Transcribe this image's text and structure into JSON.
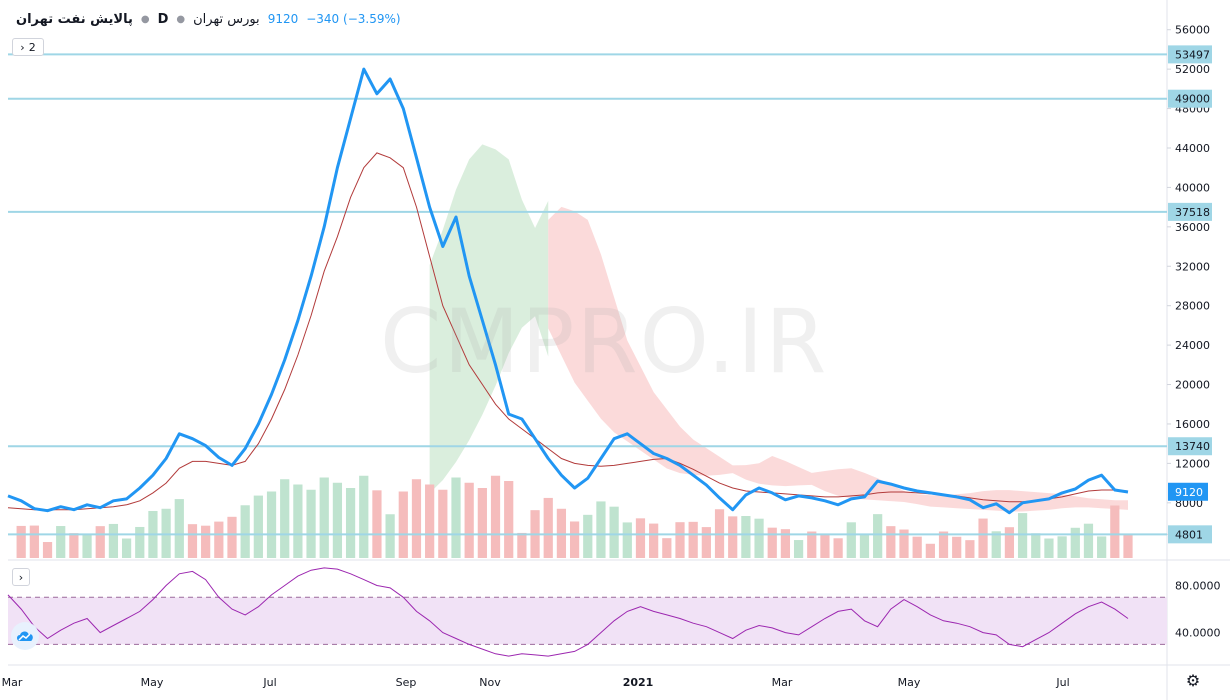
{
  "header": {
    "symbol": "پالایش نفت تهران",
    "timeframe": "D",
    "exchange": "بورس تهران",
    "price": "9120",
    "change": "−340 (−3.59%)"
  },
  "controls": {
    "collapse_count": "2"
  },
  "watermark": "CMPRO.IR",
  "colors": {
    "price_line": "#2196f3",
    "ma_line": "#b23b3b",
    "hline": "#9fd6e6",
    "cloud_bull": "#d6ecd9",
    "cloud_bear": "#fbd6d6",
    "vol_up": "#bfe3cf",
    "vol_down": "#f5bcbc",
    "rsi_line": "#9c27b0",
    "rsi_band": "#f1e2f6"
  },
  "chart_data": [
    {
      "type": "line",
      "x_labels": [
        "Mar",
        "May",
        "Jul",
        "Sep",
        "Nov",
        "2021",
        "Mar",
        "May",
        "Jul"
      ],
      "y_ticks": [
        4800,
        8000,
        12000,
        16000,
        20000,
        24000,
        28000,
        32000,
        36000,
        40000,
        44000,
        48000,
        52000,
        56000
      ],
      "ylim": [
        2400,
        58000
      ],
      "horizontal_levels": [
        53497,
        49000,
        37518,
        13740,
        4801
      ],
      "last_price": 9120,
      "series": [
        {
          "values": [
            8700,
            8200,
            7400,
            7200,
            7600,
            7300,
            7800,
            7500,
            8200,
            8400,
            9500,
            10800,
            12500,
            15000,
            14500,
            13800,
            12600,
            11800,
            13500,
            16000,
            19000,
            22500,
            26500,
            31000,
            36000,
            42000,
            47000,
            52000,
            49500,
            51000,
            48000,
            43000,
            38000,
            34000,
            37000,
            31000,
            26500,
            22000,
            17000,
            16500,
            14500,
            12500,
            10800,
            9500,
            10500,
            12500,
            14500,
            15000,
            14000,
            13000,
            12500,
            11800,
            10800,
            9800,
            8500,
            7300,
            8800,
            9500,
            9000,
            8300,
            8700,
            8500,
            8200,
            7800,
            8400,
            8600,
            10200,
            9900,
            9500,
            9200,
            9000,
            8800,
            8600,
            8300,
            7500,
            7900,
            7000,
            8000,
            8200,
            8400,
            9000,
            9400,
            10300,
            10800,
            9300,
            9100
          ]
        },
        {
          "values": [
            7500,
            7400,
            7300,
            7300,
            7300,
            7300,
            7400,
            7500,
            7600,
            7800,
            8200,
            9000,
            10000,
            11500,
            12200,
            12200,
            12000,
            11800,
            12200,
            14000,
            16500,
            19500,
            23000,
            27000,
            31500,
            35000,
            39000,
            42000,
            43500,
            43000,
            42000,
            38000,
            33000,
            28000,
            25000,
            22000,
            20000,
            18000,
            16500,
            15500,
            14500,
            13500,
            12500,
            12000,
            11800,
            11700,
            11800,
            12000,
            12200,
            12400,
            12500,
            12000,
            11400,
            10700,
            10000,
            9500,
            9200,
            9100,
            9000,
            8900,
            8800,
            8700,
            8600,
            8600,
            8700,
            8800,
            9000,
            9100,
            9100,
            9000,
            8900,
            8800,
            8700,
            8500,
            8300,
            8200,
            8100,
            8100,
            8200,
            8400,
            8600,
            8900,
            9200,
            9300,
            9300,
            9200
          ]
        }
      ],
      "volume": [
        {
          "up": true,
          "value": 0.3
        },
        {
          "up": false,
          "value": 0.5
        },
        {
          "up": true,
          "value": 0.7
        },
        {
          "up": false,
          "value": 0.4
        }
      ]
    },
    {
      "type": "line",
      "y_ticks": [
        40.0,
        80.0
      ],
      "y_tick_labels": [
        "40.0000",
        "80.0000"
      ],
      "band": [
        30,
        70
      ],
      "ylim": [
        15,
        100
      ],
      "series": [
        {
          "values": [
            72,
            60,
            45,
            35,
            42,
            48,
            52,
            40,
            46,
            52,
            58,
            68,
            80,
            90,
            92,
            85,
            70,
            60,
            55,
            62,
            72,
            80,
            88,
            93,
            95,
            94,
            90,
            85,
            80,
            78,
            70,
            58,
            50,
            40,
            35,
            30,
            26,
            22,
            20,
            22,
            21,
            20,
            22,
            24,
            30,
            40,
            50,
            58,
            62,
            58,
            55,
            52,
            48,
            45,
            40,
            35,
            42,
            46,
            44,
            40,
            38,
            45,
            52,
            58,
            60,
            50,
            45,
            60,
            68,
            62,
            55,
            50,
            48,
            45,
            40,
            38,
            30,
            28,
            34,
            40,
            48,
            56,
            62,
            66,
            60,
            52
          ]
        }
      ]
    }
  ]
}
